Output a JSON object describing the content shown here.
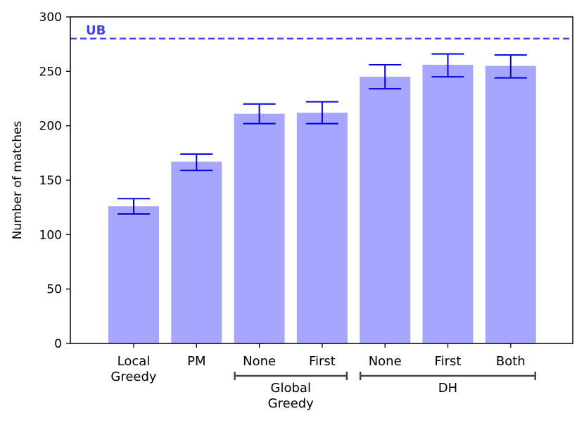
{
  "chart_data": {
    "type": "bar",
    "categories": [
      "Local\nGreedy",
      "PM",
      "None",
      "First",
      "None",
      "First",
      "Both"
    ],
    "values": [
      126,
      167,
      211,
      212,
      245,
      256,
      255
    ],
    "error_low": [
      119,
      159,
      202,
      202,
      234,
      245,
      244
    ],
    "error_high": [
      133,
      174,
      220,
      222,
      256,
      266,
      265
    ],
    "ylabel": "Number of matches",
    "xlabel": "",
    "ylim": [
      0,
      300
    ],
    "yticks": [
      0,
      50,
      100,
      150,
      200,
      250,
      300
    ],
    "upper_bound": {
      "label": "UB",
      "value": 280
    },
    "groups": [
      {
        "label": "Global\nGreedy",
        "from": 2,
        "to": 3
      },
      {
        "label": "DH",
        "from": 4,
        "to": 6
      }
    ],
    "colors": {
      "bar": "#a6a6ff",
      "error": "#0000dd",
      "ub": "#4040ee",
      "bracket": "#444444"
    },
    "grid": false
  }
}
